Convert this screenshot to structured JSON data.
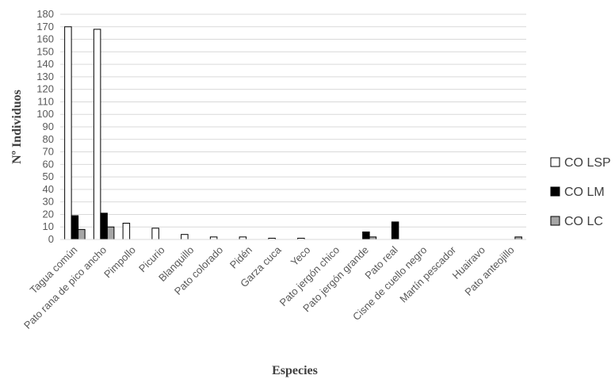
{
  "chart_data": {
    "type": "bar",
    "title": "",
    "xlabel": "Especies",
    "ylabel": "Nº Individuos",
    "ylim": [
      0,
      180
    ],
    "yticks": [
      0,
      10,
      20,
      30,
      40,
      50,
      60,
      70,
      80,
      90,
      100,
      110,
      120,
      130,
      140,
      150,
      160,
      170,
      180
    ],
    "grid": true,
    "legend_position": "right",
    "categories": [
      "Tagua común",
      "Pato rana de pico ancho",
      "Pimpollo",
      "Picurio",
      "Blanquillo",
      "Pato colorado",
      "Pidén",
      "Garza cuca",
      "Yeco",
      "Pato jergón chico",
      "Pato jergón grande",
      "Pato real",
      "Cisne de cuello negro",
      "Martín pescador",
      "Huairavo",
      "Pato anteojillo"
    ],
    "series": [
      {
        "name": "CO LSP",
        "color": "#ffffff",
        "values": [
          170,
          168,
          13,
          9,
          4,
          2,
          2,
          1,
          1,
          0,
          0,
          0,
          0,
          0,
          0,
          0
        ]
      },
      {
        "name": "CO LM",
        "color": "#000000",
        "values": [
          19,
          21,
          0,
          0,
          0,
          0,
          0,
          0,
          0,
          0,
          6,
          14,
          0,
          0,
          0,
          0
        ]
      },
      {
        "name": "CO LC",
        "color": "#a6a6a6",
        "values": [
          8,
          10,
          0,
          0,
          0,
          0,
          0,
          0,
          0,
          0,
          2,
          0,
          0,
          0,
          0,
          2
        ]
      }
    ]
  }
}
